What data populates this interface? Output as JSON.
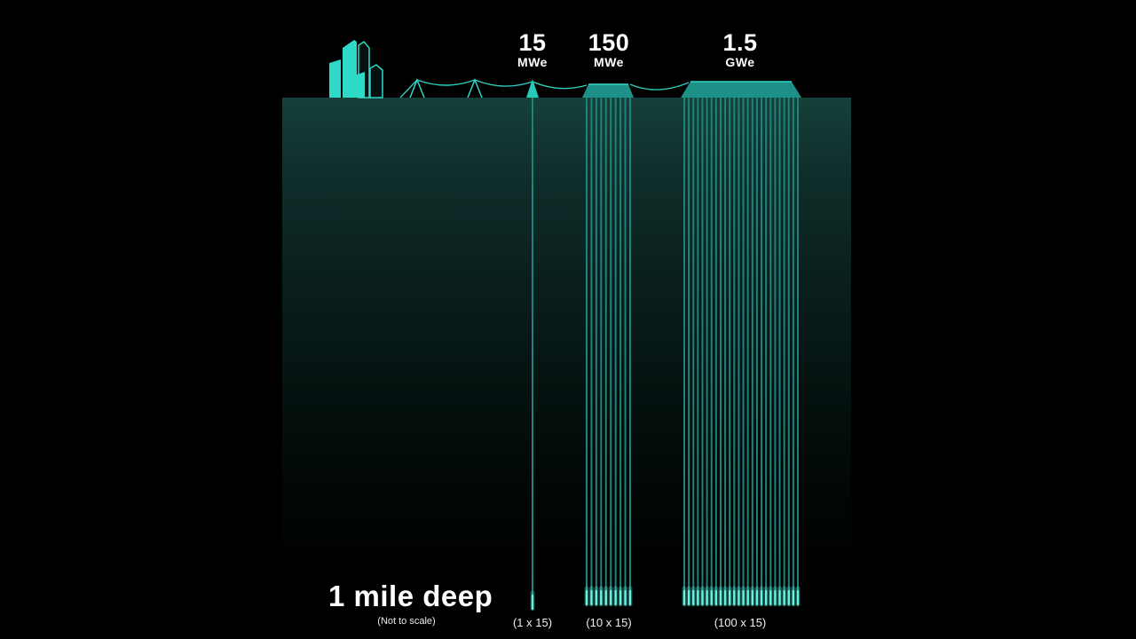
{
  "footer": {
    "depth_label": "1 mile deep",
    "scale_note": "(Not to scale)"
  },
  "sites": [
    {
      "power": "15",
      "unit": "MWe",
      "config": "(1 x 15)",
      "wells_shown": 1
    },
    {
      "power": "150",
      "unit": "MWe",
      "config": "(10 x 15)",
      "wells_shown": 10
    },
    {
      "power": "1.5",
      "unit": "GWe",
      "config": "(100 x 15)",
      "wells_shown": 26
    }
  ],
  "icons": {
    "city": "city-skyline-icon",
    "pylon": "transmission-pylon-icon",
    "wire": "power-line",
    "wellhead": "wellhead-triangle-icon",
    "platform": "well-pad-platform"
  },
  "colors": {
    "background": "#000000",
    "accent": "#2fd9c7",
    "platform": "#1d9188",
    "well_line": "#1e837b",
    "well_tip": "#66f2e2",
    "well_tip_glow": "#5af0dc",
    "ground_top": "#16403b",
    "text": "#ffffff"
  }
}
